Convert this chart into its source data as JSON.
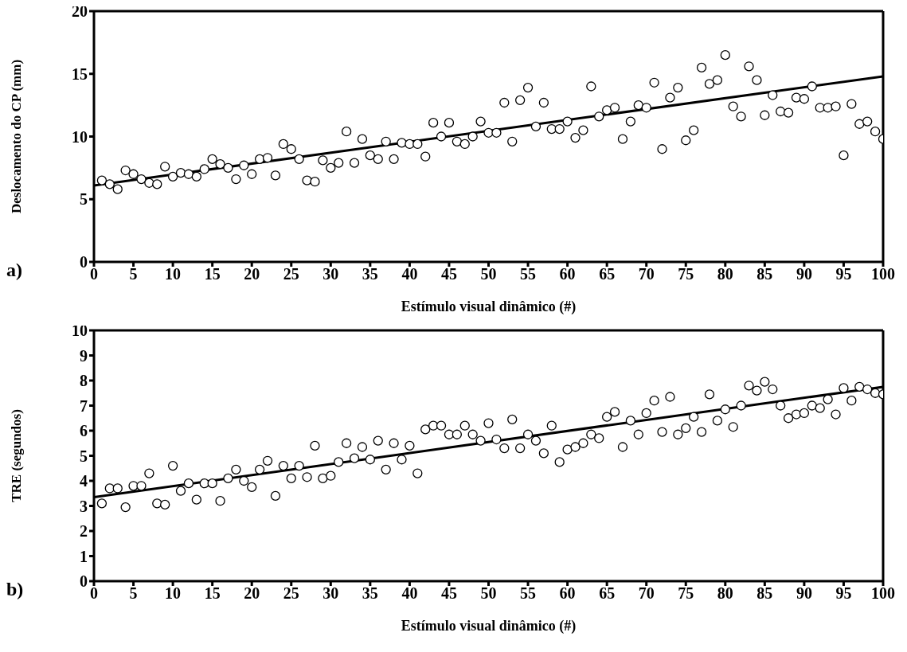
{
  "chart_data": [
    {
      "type": "scatter",
      "xlabel": "Estímulo visual dinâmico (#)",
      "ylabel": "Deslocamento do CP (mm)",
      "annotations": [
        "a)"
      ],
      "xlim": [
        0,
        100
      ],
      "xticks": [
        0,
        5,
        10,
        15,
        20,
        25,
        30,
        35,
        40,
        45,
        50,
        55,
        60,
        65,
        70,
        75,
        80,
        85,
        90,
        95,
        100
      ],
      "ylim": [
        0,
        20
      ],
      "yticks": [
        0,
        5,
        10,
        15,
        20
      ],
      "grid": false,
      "legend": false,
      "series": [
        {
          "marker": "circle",
          "color": "#000000",
          "x": [
            1,
            2,
            3,
            4,
            5,
            6,
            7,
            8,
            9,
            10,
            11,
            12,
            13,
            14,
            15,
            16,
            17,
            18,
            19,
            20,
            21,
            22,
            23,
            24,
            25,
            26,
            27,
            28,
            29,
            30,
            31,
            32,
            33,
            34,
            35,
            36,
            37,
            38,
            39,
            40,
            41,
            42,
            43,
            44,
            45,
            46,
            47,
            48,
            49,
            50,
            51,
            52,
            53,
            54,
            55,
            56,
            57,
            58,
            59,
            60,
            61,
            62,
            63,
            64,
            65,
            66,
            67,
            68,
            69,
            70,
            71,
            72,
            73,
            74,
            75,
            76,
            77,
            78,
            79,
            80,
            81,
            82,
            83,
            84,
            85,
            86,
            87,
            88,
            89,
            90,
            91,
            92,
            93,
            94,
            95,
            96,
            97,
            98,
            99,
            100
          ],
          "values": [
            6.5,
            6.2,
            5.8,
            7.3,
            7.0,
            6.6,
            6.3,
            6.2,
            7.6,
            6.8,
            7.1,
            7.0,
            6.8,
            7.4,
            8.2,
            7.8,
            7.5,
            6.6,
            7.7,
            7.0,
            8.2,
            8.3,
            6.9,
            9.4,
            9.0,
            8.2,
            6.5,
            6.4,
            8.1,
            7.5,
            7.9,
            10.4,
            7.9,
            9.8,
            8.5,
            8.2,
            9.6,
            8.2,
            9.5,
            9.4,
            9.4,
            8.4,
            11.1,
            10.0,
            11.1,
            9.6,
            9.4,
            10.0,
            11.2,
            10.3,
            10.3,
            12.7,
            9.6,
            12.9,
            13.9,
            10.8,
            12.7,
            10.6,
            10.6,
            11.2,
            9.9,
            10.5,
            14.0,
            11.6,
            12.1,
            12.3,
            9.8,
            11.2,
            12.5,
            12.3,
            14.3,
            9.0,
            13.1,
            13.9,
            9.7,
            10.5,
            15.5,
            14.2,
            14.5,
            16.5,
            12.4,
            11.6,
            15.6,
            14.5,
            11.7,
            13.3,
            12.0,
            11.9,
            13.1,
            13.0,
            14.0,
            12.3,
            12.3,
            12.4,
            8.5,
            12.6,
            11.0,
            11.2,
            10.4,
            9.8
          ]
        },
        {
          "type": "line",
          "color": "#000000",
          "line_style": "solid",
          "x": [
            0,
            100
          ],
          "values": [
            6.1,
            14.8
          ]
        }
      ]
    },
    {
      "type": "scatter",
      "xlabel": "Estímulo visual dinâmico (#)",
      "ylabel": "TRE (segundos)",
      "annotations": [
        "b)"
      ],
      "xlim": [
        0,
        100
      ],
      "xticks": [
        0,
        5,
        10,
        15,
        20,
        25,
        30,
        35,
        40,
        45,
        50,
        55,
        60,
        65,
        70,
        75,
        80,
        85,
        90,
        95,
        100
      ],
      "ylim": [
        0,
        10
      ],
      "yticks": [
        0,
        1,
        2,
        3,
        4,
        5,
        6,
        7,
        8,
        9,
        10
      ],
      "grid": false,
      "legend": false,
      "series": [
        {
          "marker": "circle",
          "color": "#000000",
          "x": [
            1,
            2,
            3,
            4,
            5,
            6,
            7,
            8,
            9,
            10,
            11,
            12,
            13,
            14,
            15,
            16,
            17,
            18,
            19,
            20,
            21,
            22,
            23,
            24,
            25,
            26,
            27,
            28,
            29,
            30,
            31,
            32,
            33,
            34,
            35,
            36,
            37,
            38,
            39,
            40,
            41,
            42,
            43,
            44,
            45,
            46,
            47,
            48,
            49,
            50,
            51,
            52,
            53,
            54,
            55,
            56,
            57,
            58,
            59,
            60,
            61,
            62,
            63,
            64,
            65,
            66,
            67,
            68,
            69,
            70,
            71,
            72,
            73,
            74,
            75,
            76,
            77,
            78,
            79,
            80,
            81,
            82,
            83,
            84,
            85,
            86,
            87,
            88,
            89,
            90,
            91,
            92,
            93,
            94,
            95,
            96,
            97,
            98,
            99,
            100
          ],
          "values": [
            3.1,
            3.7,
            3.7,
            2.95,
            3.8,
            3.8,
            4.3,
            3.1,
            3.05,
            4.6,
            3.6,
            3.9,
            3.25,
            3.9,
            3.9,
            3.2,
            4.1,
            4.45,
            4.0,
            3.75,
            4.45,
            4.8,
            3.4,
            4.6,
            4.1,
            4.6,
            4.15,
            5.4,
            4.1,
            4.2,
            4.75,
            5.5,
            4.9,
            5.35,
            4.85,
            5.6,
            4.45,
            5.5,
            4.85,
            5.4,
            4.3,
            6.05,
            6.2,
            6.2,
            5.85,
            5.85,
            6.2,
            5.85,
            5.6,
            6.3,
            5.65,
            5.3,
            6.45,
            5.3,
            5.85,
            5.6,
            5.1,
            6.2,
            4.75,
            5.25,
            5.35,
            5.5,
            5.85,
            5.7,
            6.55,
            6.75,
            5.35,
            6.4,
            5.85,
            6.7,
            7.2,
            5.95,
            7.35,
            5.85,
            6.1,
            6.55,
            5.95,
            7.45,
            6.4,
            6.85,
            6.15,
            7.0,
            7.8,
            7.6,
            7.95,
            7.65,
            7.0,
            6.5,
            6.65,
            6.7,
            7.0,
            6.9,
            7.25,
            6.65,
            7.7,
            7.2,
            7.75,
            7.65,
            7.5,
            7.45
          ]
        },
        {
          "type": "line",
          "color": "#000000",
          "line_style": "solid",
          "x": [
            0,
            100
          ],
          "values": [
            3.35,
            7.75
          ]
        }
      ]
    }
  ]
}
